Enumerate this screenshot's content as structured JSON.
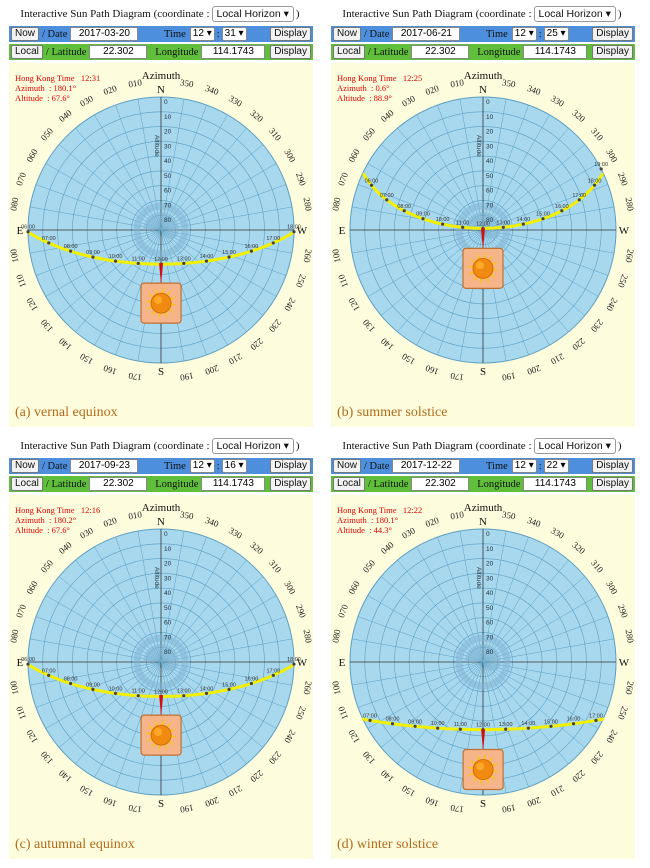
{
  "header_title": "Interactive Sun Path Diagram (coordinate :",
  "coordinate_option": "Local Horizon",
  "now_label": "Now",
  "date_label": "/ Date",
  "time_label": "Time",
  "display_label": "Display",
  "local_label": "Local",
  "latitude_label": "/ Latitude",
  "longitude_label": "Longitude",
  "latitude": "22.302",
  "longitude": "114.1743",
  "azimuth_title": "Azimuth",
  "altitude_axis_label": "Altitude",
  "info_time_label": "Hong Kong Time",
  "info_azimuth_label": "Azimuth",
  "info_altitude_label": "Altitude",
  "compass": {
    "n": "N",
    "e": "E",
    "s": "S",
    "w": "W"
  },
  "panels": [
    {
      "date": "2017-03-20",
      "hour": "12",
      "minute": "31",
      "time": "12:31",
      "azimuth": ": 180.1°",
      "altitude": ": 67.6°",
      "caption": "(a) vernal equinox",
      "sun_azimuth": 180.1,
      "sun_altitude": 67.6,
      "hour_labels": [
        "06:00",
        "07:00",
        "08:00",
        "09:00",
        "10:00",
        "11:00",
        "12:00",
        "13:00",
        "14:00",
        "15:00",
        "16:00",
        "17:00",
        "18:00"
      ]
    },
    {
      "date": "2017-06-21",
      "hour": "12",
      "minute": "25",
      "time": "12:25",
      "azimuth": ": 0.6°",
      "altitude": ": 88.9°",
      "caption": "(b) summer solstice",
      "sun_azimuth": 0.6,
      "sun_altitude": 88.9,
      "hour_labels": [
        "06:00",
        "07:00",
        "08:00",
        "09:00",
        "10:00",
        "11:00",
        "12:00",
        "13:00",
        "14:00",
        "15:00",
        "16:00",
        "17:00",
        "18:00",
        "19:00"
      ]
    },
    {
      "date": "2017-09-23",
      "hour": "12",
      "minute": "16",
      "time": "12:16",
      "azimuth": ": 180.2°",
      "altitude": ": 67.6°",
      "caption": "(c) autumnal equinox",
      "sun_azimuth": 180.2,
      "sun_altitude": 67.6,
      "hour_labels": [
        "06:00",
        "07:00",
        "08:00",
        "09:00",
        "10:00",
        "11:00",
        "12:00",
        "13:00",
        "14:00",
        "15:00",
        "16:00",
        "17:00",
        "18:00"
      ]
    },
    {
      "date": "2017-12-22",
      "hour": "12",
      "minute": "22",
      "time": "12:22",
      "azimuth": ": 180.1°",
      "altitude": ": 44.3°",
      "caption": "(d) winter solstice",
      "sun_azimuth": 180.1,
      "sun_altitude": 44.3,
      "hour_labels": [
        "07:00",
        "08:00",
        "09:00",
        "10:00",
        "11:00",
        "12:00",
        "13:00",
        "14:00",
        "15:00",
        "16:00",
        "17:00"
      ]
    }
  ],
  "azimuth_ticks": [
    "010",
    "020",
    "030",
    "040",
    "050",
    "060",
    "070",
    "080",
    "100",
    "110",
    "120",
    "130",
    "140",
    "150",
    "160",
    "170",
    "190",
    "200",
    "210",
    "220",
    "230",
    "240",
    "250",
    "260",
    "280",
    "290",
    "300",
    "310",
    "320",
    "330",
    "340",
    "350"
  ],
  "altitude_ticks": [
    "0",
    "10",
    "20",
    "30",
    "40",
    "50",
    "60",
    "70",
    "80"
  ],
  "colors": {
    "dome": "#a8d8ee",
    "grid": "#5c9fc2",
    "path": "#f2f000",
    "sun_box": "#f6b48a",
    "sun_box_border": "#c07030",
    "sun": "#f08a10",
    "ray": "#f5c518",
    "pointer": "#d01010",
    "text_red": "#e00000",
    "caption": "#b36a1a",
    "row1_bg": "#4d8fdc",
    "row2_bg": "#5fbf3a",
    "area_bg": "#fdfcdc"
  }
}
